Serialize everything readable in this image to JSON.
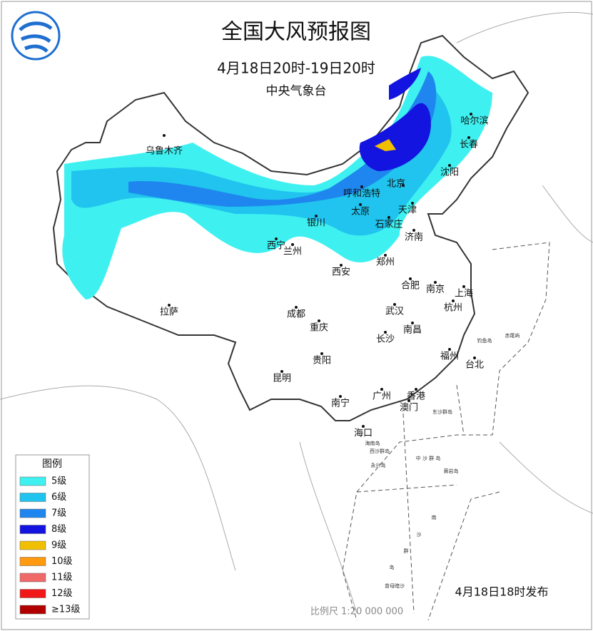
{
  "header": {
    "title": "全国大风预报图",
    "subtitle": "4月18日20时-19日20时",
    "issuer": "中央气象台"
  },
  "cities": [
    {
      "name": "乌鲁木齐"
    },
    {
      "name": "哈尔滨"
    },
    {
      "name": "长春"
    },
    {
      "name": "沈阳"
    },
    {
      "name": "北京",
      "color": "#d02020"
    },
    {
      "name": "天津"
    },
    {
      "name": "呼和浩特"
    },
    {
      "name": "太原"
    },
    {
      "name": "石家庄"
    },
    {
      "name": "银川"
    },
    {
      "name": "济南"
    },
    {
      "name": "西宁"
    },
    {
      "name": "兰州"
    },
    {
      "name": "郑州"
    },
    {
      "name": "西安"
    },
    {
      "name": "合肥"
    },
    {
      "name": "南京"
    },
    {
      "name": "上海"
    },
    {
      "name": "杭州"
    },
    {
      "name": "拉萨"
    },
    {
      "name": "成都"
    },
    {
      "name": "武汉"
    },
    {
      "name": "重庆"
    },
    {
      "name": "南昌"
    },
    {
      "name": "长沙"
    },
    {
      "name": "贵阳"
    },
    {
      "name": "福州"
    },
    {
      "name": "台北"
    },
    {
      "name": "昆明"
    },
    {
      "name": "南宁"
    },
    {
      "name": "广州"
    },
    {
      "name": "香港"
    },
    {
      "name": "澳门"
    },
    {
      "name": "海口"
    }
  ],
  "islands": [
    "东沙群岛",
    "西沙群岛",
    "中 沙 群 岛",
    "海南岛",
    "黄岩岛",
    "钓鱼岛",
    "赤尾屿",
    "永兴岛",
    "曾母暗沙",
    "南",
    "沙",
    "群",
    "岛"
  ],
  "legend": {
    "title": "图例",
    "items": [
      {
        "label": "5级",
        "color": "#3ff0f0"
      },
      {
        "label": "6级",
        "color": "#20c4ee"
      },
      {
        "label": "7级",
        "color": "#1e86ee"
      },
      {
        "label": "8级",
        "color": "#1414e0"
      },
      {
        "label": "9级",
        "color": "#f0c000"
      },
      {
        "label": "10级",
        "color": "#ff9a10"
      },
      {
        "label": "11级",
        "color": "#f06868"
      },
      {
        "label": "12级",
        "color": "#f01818"
      },
      {
        "label": "≥13级",
        "color": "#b00000"
      }
    ]
  },
  "footer": {
    "issued": "4月18日18时发布",
    "scale": "比例尺 1:20 000 000"
  }
}
